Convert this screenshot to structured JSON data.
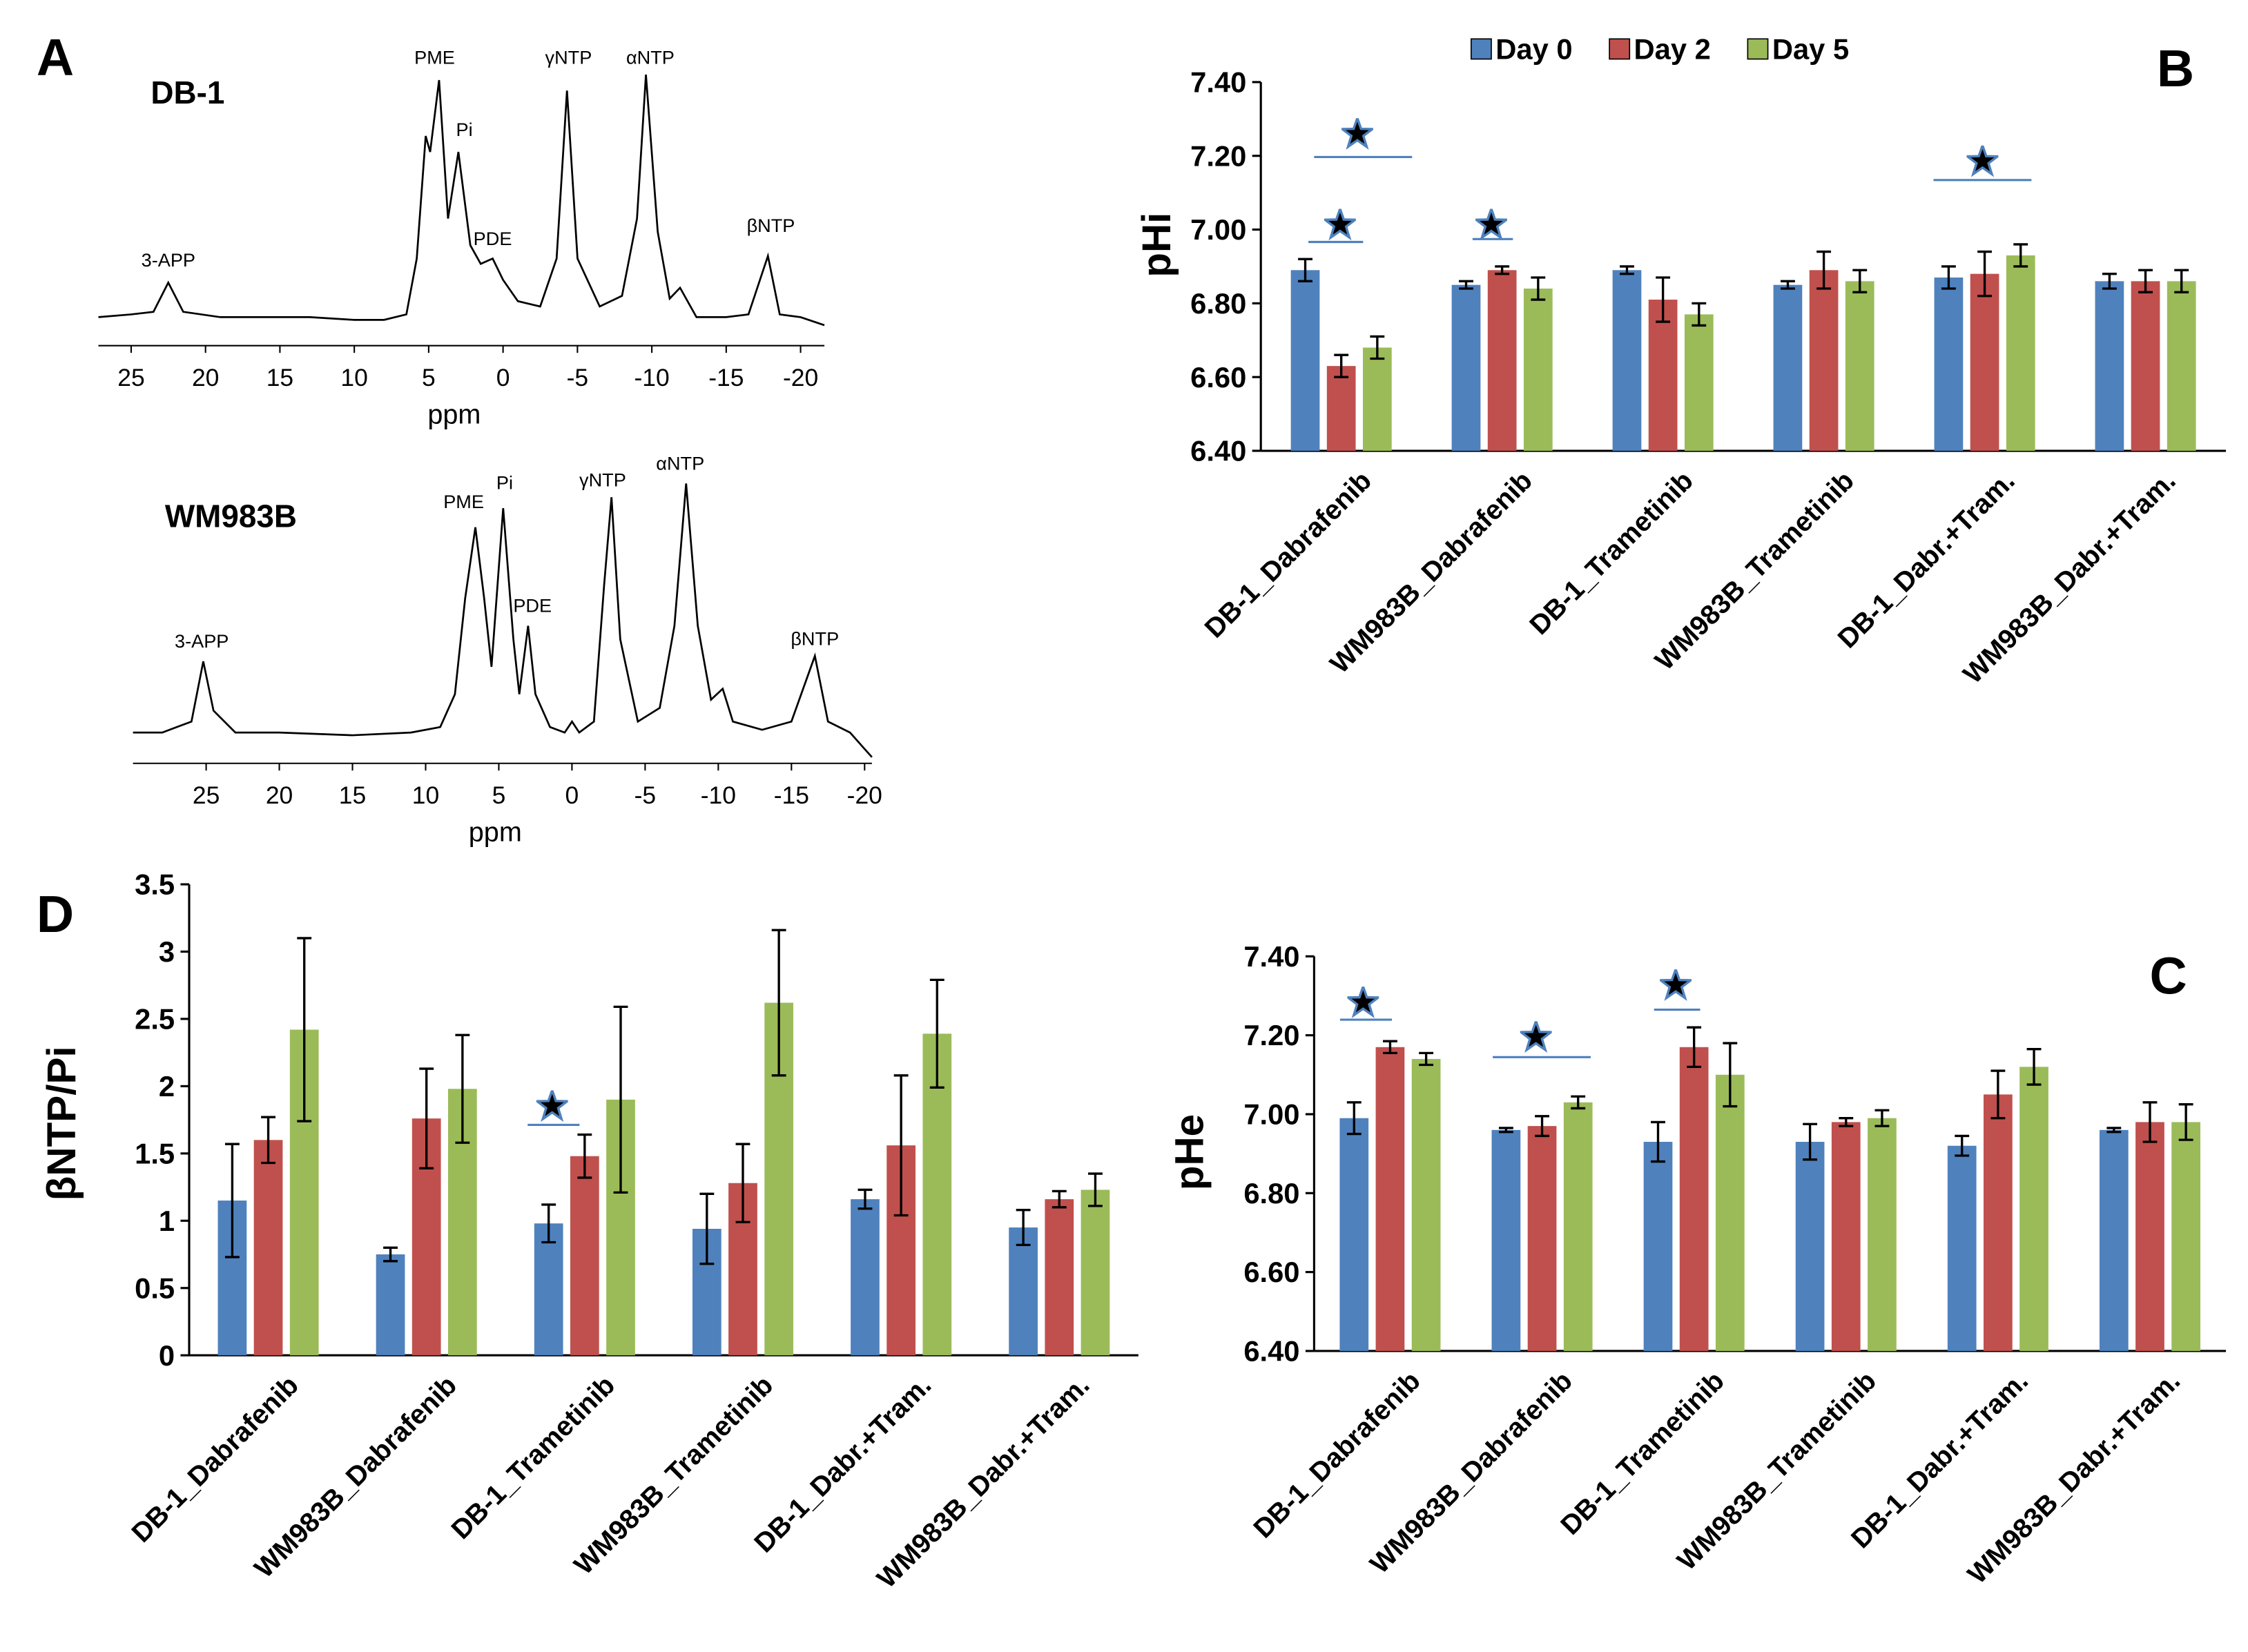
{
  "chart_data": [
    {
      "type": "line",
      "panel": "A",
      "title": "DB-1",
      "xlabel": "ppm",
      "color": "#000000",
      "x": [
        27.2,
        25,
        23.5,
        22.5,
        21.5,
        19,
        16,
        13,
        10,
        8,
        6.5,
        5.8,
        5.2,
        4.9,
        4.3,
        3.7,
        3.0,
        2.2,
        1.5,
        0.7,
        0,
        -1,
        -2.5,
        -3.6,
        -4.3,
        -5,
        -6.5,
        -8,
        -9,
        -9.6,
        -10.4,
        -11.2,
        -11.9,
        -13,
        -15,
        -16.5,
        -17.8,
        -18.6,
        -20,
        -21.6
      ],
      "values": [
        8,
        9,
        10,
        21,
        10,
        8,
        8,
        8,
        7,
        7,
        9,
        30,
        76,
        70,
        97,
        45,
        70,
        35,
        28,
        30,
        22,
        14,
        12,
        30,
        93,
        30,
        12,
        16,
        45,
        99,
        40,
        15,
        19,
        8,
        8,
        9,
        31,
        9,
        8,
        5
      ],
      "xlim": [
        27.2,
        -21.6
      ],
      "ylim": [
        0,
        100
      ],
      "xticks": [
        25,
        20,
        15,
        10,
        5,
        0,
        -5,
        -10,
        -15,
        -20
      ],
      "annotations": [
        {
          "text": "3-APP",
          "x": 22.5,
          "y": 27
        },
        {
          "text": "PME",
          "x": 4.6,
          "y": 103
        },
        {
          "text": "Pi",
          "x": 2.6,
          "y": 76
        },
        {
          "text": "PDE",
          "x": 0.7,
          "y": 35
        },
        {
          "text": "γNTP",
          "x": -4.4,
          "y": 103
        },
        {
          "text": "αNTP",
          "x": -9.9,
          "y": 103
        },
        {
          "text": "βNTP",
          "x": -18,
          "y": 40
        }
      ]
    },
    {
      "type": "line",
      "title": "WM983B",
      "xlabel": "ppm",
      "color": "#000000",
      "x": [
        30,
        28,
        26,
        25.2,
        24.5,
        23,
        20,
        15,
        11,
        9,
        8,
        7.3,
        6.6,
        6.0,
        5.5,
        4.7,
        4.0,
        3.6,
        3.0,
        2.5,
        1.5,
        0.5,
        0,
        -0.5,
        -1.5,
        -2.2,
        -2.7,
        -3.3,
        -4.5,
        -6,
        -7,
        -7.8,
        -8.6,
        -9.5,
        -10.3,
        -11,
        -13,
        -15,
        -16.6,
        -17.5,
        -19,
        -20,
        -20.5
      ],
      "values": [
        6,
        6,
        10,
        32,
        14,
        6,
        6,
        5,
        6,
        8,
        20,
        55,
        81,
        55,
        30,
        88,
        40,
        20,
        45,
        20,
        8,
        6,
        10,
        6,
        10,
        60,
        92,
        40,
        10,
        15,
        45,
        97,
        45,
        18,
        22,
        10,
        7,
        10,
        34,
        10,
        6,
        0,
        -3
      ],
      "xlim": [
        30,
        -20.5
      ],
      "ylim": [
        0,
        100
      ],
      "xticks": [
        25,
        20,
        15,
        10,
        5,
        0,
        -5,
        -10,
        -15,
        -20
      ],
      "annotations": [
        {
          "text": "3-APP",
          "x": 25.3,
          "y": 37
        },
        {
          "text": "PME",
          "x": 7.4,
          "y": 88
        },
        {
          "text": "Pi",
          "x": 4.6,
          "y": 95
        },
        {
          "text": "PDE",
          "x": 2.7,
          "y": 50
        },
        {
          "text": "γNTP",
          "x": -2.1,
          "y": 96
        },
        {
          "text": "αNTP",
          "x": -7.4,
          "y": 102
        },
        {
          "text": "βNTP",
          "x": -16.6,
          "y": 38
        }
      ]
    },
    {
      "type": "bar",
      "panel": "B",
      "ylabel": "pHi",
      "legend": "top",
      "categories": [
        "DB-1_Dabrafenib",
        "WM983B_Dabrafenib",
        "DB-1_Trametinib",
        "WM983B_Trametinib",
        "DB-1_Dabr.+Tram.",
        "WM983B_Dabr.+Tram."
      ],
      "series": [
        {
          "name": "Day 0",
          "color": "#4f81bd",
          "values": [
            6.89,
            6.85,
            6.89,
            6.85,
            6.87,
            6.86
          ],
          "errors": [
            0.03,
            0.01,
            0.01,
            0.01,
            0.03,
            0.02
          ]
        },
        {
          "name": "Day 2",
          "color": "#c0504d",
          "values": [
            6.63,
            6.89,
            6.81,
            6.89,
            6.88,
            6.86
          ],
          "errors": [
            0.03,
            0.01,
            0.06,
            0.05,
            0.06,
            0.03
          ]
        },
        {
          "name": "Day 5",
          "color": "#9bbb59",
          "values": [
            6.68,
            6.84,
            6.77,
            6.86,
            6.93,
            6.86
          ],
          "errors": [
            0.03,
            0.03,
            0.03,
            0.03,
            0.03,
            0.03
          ]
        }
      ],
      "ylim": [
        6.4,
        7.4
      ],
      "yticks": [
        {
          "value": 6.4,
          "label": "6.40"
        },
        {
          "value": 6.6,
          "label": "6.60"
        },
        {
          "value": 6.8,
          "label": "6.80"
        },
        {
          "value": 7.0,
          "label": "7.00"
        },
        {
          "value": 7.2,
          "label": "7.20"
        },
        {
          "value": 7.4,
          "label": "7.40"
        }
      ]
    },
    {
      "type": "bar",
      "panel": "C",
      "ylabel": "pHe",
      "categories": [
        "DB-1_Dabrafenib",
        "WM983B_Dabrafenib",
        "DB-1_Trametinib",
        "WM983B_Trametinib",
        "DB-1_Dabr.+Tram.",
        "WM983B_Dabr.+Tram."
      ],
      "series": [
        {
          "color": "#4f81bd",
          "values": [
            6.99,
            6.96,
            6.93,
            6.93,
            6.92,
            6.96
          ],
          "errors": [
            0.04,
            0.005,
            0.05,
            0.045,
            0.025,
            0.005
          ]
        },
        {
          "color": "#c0504d",
          "values": [
            7.17,
            6.97,
            7.17,
            6.98,
            7.05,
            6.98
          ],
          "errors": [
            0.015,
            0.025,
            0.05,
            0.01,
            0.06,
            0.05
          ]
        },
        {
          "color": "#9bbb59",
          "values": [
            7.14,
            7.03,
            7.1,
            6.99,
            7.12,
            6.98
          ],
          "errors": [
            0.015,
            0.015,
            0.08,
            0.02,
            0.045,
            0.045
          ]
        }
      ],
      "ylim": [
        6.4,
        7.4
      ],
      "yticks": [
        {
          "value": 6.4,
          "label": "6.40"
        },
        {
          "value": 6.6,
          "label": "6.60"
        },
        {
          "value": 6.8,
          "label": "6.80"
        },
        {
          "value": 7.0,
          "label": "7.00"
        },
        {
          "value": 7.2,
          "label": "7.20"
        },
        {
          "value": 7.4,
          "label": "7.40"
        }
      ]
    },
    {
      "type": "bar",
      "panel": "D",
      "ylabel": "βNTP/Pi",
      "categories": [
        "DB-1_Dabrafenib",
        "WM983B_Dabrafenib",
        "DB-1_Trametinib",
        "WM983B_Trametinib",
        "DB-1_Dabr.+Tram.",
        "WM983B_Dabr.+Tram."
      ],
      "series": [
        {
          "color": "#4f81bd",
          "values": [
            1.15,
            0.75,
            0.98,
            0.94,
            1.16,
            0.95
          ],
          "errors": [
            0.42,
            0.05,
            0.14,
            0.26,
            0.07,
            0.13
          ]
        },
        {
          "color": "#c0504d",
          "values": [
            1.6,
            1.76,
            1.48,
            1.28,
            1.56,
            1.16
          ],
          "errors": [
            0.17,
            0.37,
            0.16,
            0.29,
            0.52,
            0.06
          ]
        },
        {
          "color": "#9bbb59",
          "values": [
            2.42,
            1.98,
            1.9,
            2.62,
            2.39,
            1.23
          ],
          "errors": [
            0.68,
            0.4,
            0.69,
            0.54,
            0.4,
            0.12
          ]
        }
      ],
      "ylim": [
        0,
        3.5
      ],
      "yticks": [
        0,
        0.5,
        1,
        1.5,
        2,
        2.5,
        3,
        3.5
      ]
    }
  ]
}
